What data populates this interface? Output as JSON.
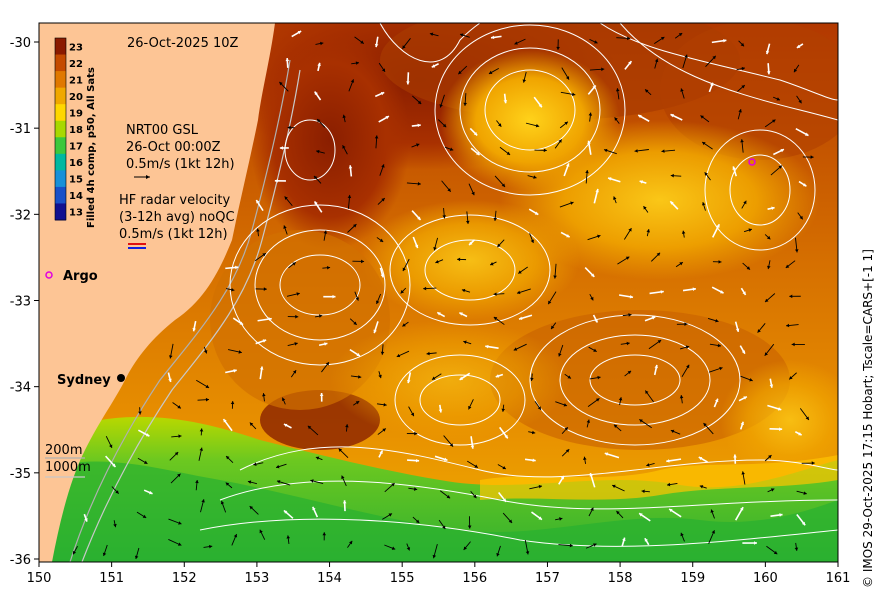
{
  "header": {
    "date_label": "26-Oct-2025 10Z"
  },
  "colorbar": {
    "title": "Filled 4h comp, p50, All Sats",
    "ticks": [
      "23",
      "22",
      "21",
      "20",
      "19",
      "18",
      "17",
      "16",
      "15",
      "14",
      "13"
    ],
    "colors": [
      "#8b1a00",
      "#c44a00",
      "#e07800",
      "#f0a800",
      "#ffd700",
      "#a8d800",
      "#3cc83c",
      "#00b8a0",
      "#1890d8",
      "#1850c8",
      "#101090"
    ]
  },
  "legend": {
    "model_name": "NRT00 GSL",
    "model_time": "26-Oct 00:00Z",
    "model_scale": "0.5m/s (1kt 12h)",
    "radar_title": "HF radar velocity",
    "radar_sub": "(3-12h avg) noQC",
    "radar_scale": "0.5m/s (1kt 12h)",
    "argo_label": "Argo",
    "depth_200": "200m",
    "depth_1000": "1000m"
  },
  "places": {
    "sydney": "Sydney"
  },
  "axes": {
    "x_ticks": [
      "150",
      "151",
      "152",
      "153",
      "154",
      "155",
      "156",
      "157",
      "158",
      "159",
      "160",
      "161"
    ],
    "y_ticks": [
      "-30",
      "-31",
      "-32",
      "-33",
      "-34",
      "-35",
      "-36"
    ]
  },
  "credit": "© IMOS 29-Oct-2025 17:15 Hobart; Tscale=CARS+[-1 1]",
  "colors": {
    "land": "#fdc595",
    "warm": "#c85a00",
    "hot": "#9a2400",
    "mid": "#e89a10",
    "cool": "#8fd400",
    "cold": "#2ab830",
    "contour": "#ffffff",
    "argo": "#e000e0"
  }
}
